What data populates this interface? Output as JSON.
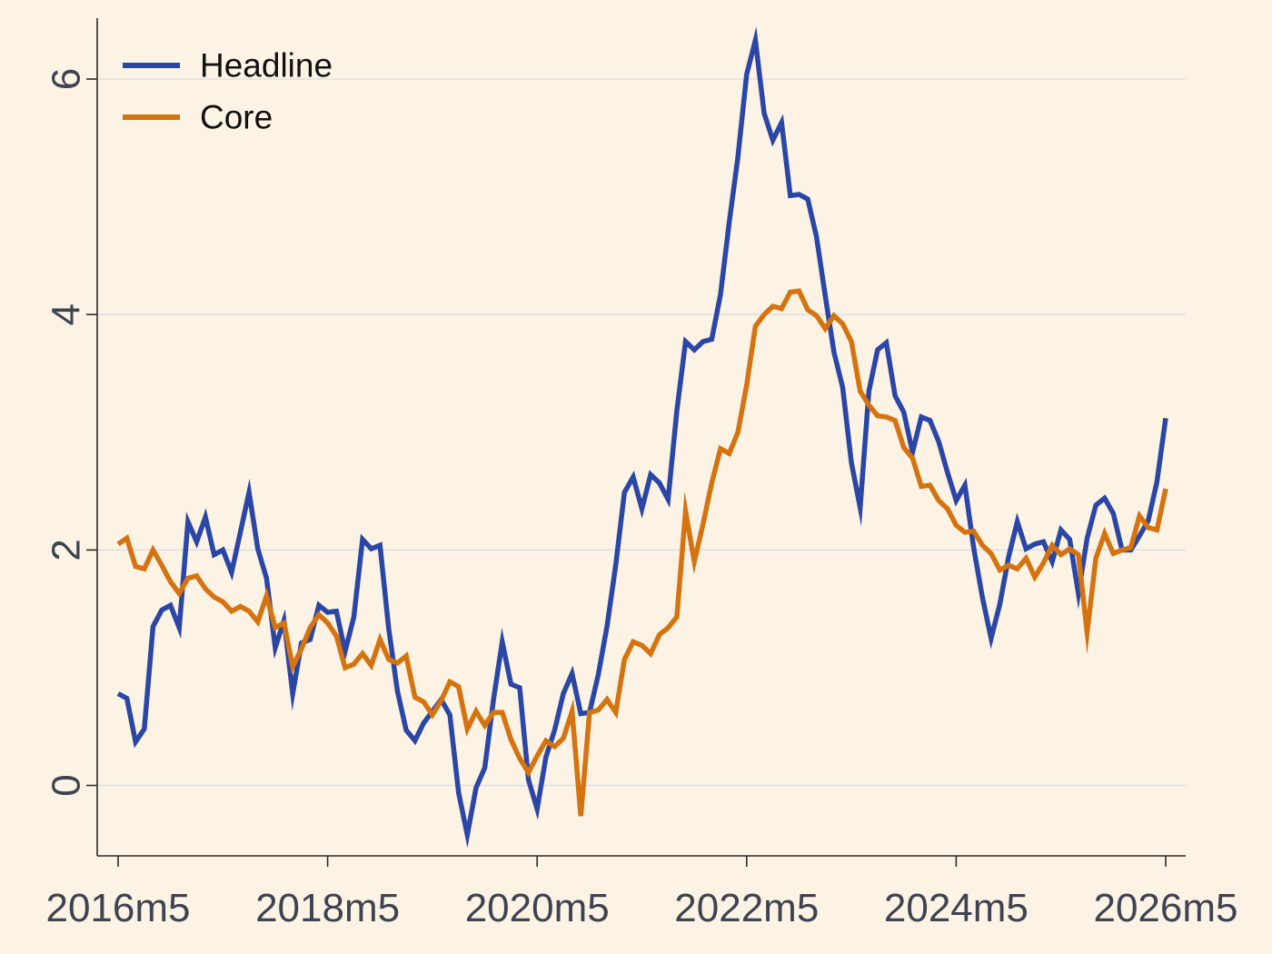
{
  "chart_data": {
    "type": "line",
    "title": "",
    "xlabel": "",
    "ylabel": "",
    "x_start": "2016m5",
    "x_end": "2026m5",
    "xlim": [
      "2016m5",
      "2026m5"
    ],
    "ylim": [
      -0.6,
      6.6
    ],
    "x_ticks": [
      "2016m5",
      "2018m5",
      "2020m5",
      "2022m5",
      "2024m5",
      "2026m5"
    ],
    "y_ticks": [
      "0",
      "2",
      "4",
      "6"
    ],
    "grid": true,
    "legend_position": "top-left",
    "series": [
      {
        "name": "Headline",
        "color": "#2a46a6",
        "values": [
          0.78,
          0.74,
          0.37,
          0.48,
          1.35,
          1.49,
          1.53,
          1.34,
          2.24,
          2.07,
          2.28,
          1.96,
          2.0,
          1.81,
          2.15,
          2.49,
          2.01,
          1.76,
          1.17,
          1.4,
          0.78,
          1.21,
          1.24,
          1.53,
          1.47,
          1.48,
          1.14,
          1.43,
          2.09,
          2.01,
          2.04,
          1.33,
          0.8,
          0.47,
          0.38,
          0.53,
          0.63,
          0.73,
          0.6,
          -0.06,
          -0.42,
          -0.02,
          0.15,
          0.73,
          1.22,
          0.86,
          0.83,
          0.05,
          -0.2,
          0.24,
          0.47,
          0.78,
          0.95,
          0.61,
          0.62,
          0.94,
          1.35,
          1.87,
          2.49,
          2.62,
          2.35,
          2.64,
          2.57,
          2.43,
          3.18,
          3.77,
          3.7,
          3.77,
          3.79,
          4.17,
          4.78,
          5.34,
          6.04,
          6.33,
          5.71,
          5.48,
          5.63,
          5.01,
          5.02,
          4.98,
          4.66,
          4.16,
          3.68,
          3.38,
          2.74,
          2.36,
          3.35,
          3.7,
          3.76,
          3.31,
          3.17,
          2.83,
          3.13,
          3.1,
          2.92,
          2.66,
          2.42,
          2.55,
          2.02,
          1.6,
          1.25,
          1.54,
          1.94,
          2.24,
          2.01,
          2.05,
          2.07,
          1.9,
          2.17,
          2.09,
          1.63,
          2.1,
          2.38,
          2.44,
          2.31,
          2.0,
          2.0,
          2.12,
          2.25,
          2.58,
          3.12
        ]
      },
      {
        "name": "Core",
        "color": "#d4730f",
        "values": [
          2.05,
          2.1,
          1.86,
          1.84,
          2.0,
          1.87,
          1.73,
          1.63,
          1.76,
          1.78,
          1.67,
          1.6,
          1.56,
          1.48,
          1.52,
          1.48,
          1.39,
          1.61,
          1.34,
          1.38,
          1.01,
          1.16,
          1.34,
          1.45,
          1.38,
          1.27,
          1.0,
          1.03,
          1.12,
          1.02,
          1.24,
          1.07,
          1.04,
          1.1,
          0.75,
          0.71,
          0.6,
          0.72,
          0.88,
          0.84,
          0.48,
          0.63,
          0.51,
          0.62,
          0.62,
          0.39,
          0.23,
          0.11,
          0.25,
          0.38,
          0.33,
          0.4,
          0.63,
          -0.26,
          0.62,
          0.64,
          0.73,
          0.62,
          1.07,
          1.22,
          1.19,
          1.12,
          1.28,
          1.34,
          1.43,
          2.33,
          1.9,
          2.22,
          2.57,
          2.86,
          2.82,
          3.0,
          3.4,
          3.9,
          4.0,
          4.07,
          4.05,
          4.19,
          4.2,
          4.04,
          3.99,
          3.88,
          3.99,
          3.92,
          3.77,
          3.35,
          3.23,
          3.14,
          3.13,
          3.1,
          2.87,
          2.78,
          2.54,
          2.55,
          2.42,
          2.35,
          2.21,
          2.15,
          2.16,
          2.04,
          1.97,
          1.83,
          1.87,
          1.84,
          1.93,
          1.77,
          1.89,
          2.04,
          1.96,
          2.01,
          1.96,
          1.3,
          1.93,
          2.14,
          1.97,
          2.0,
          2.02,
          2.29,
          2.19,
          2.17,
          2.52
        ]
      }
    ]
  }
}
